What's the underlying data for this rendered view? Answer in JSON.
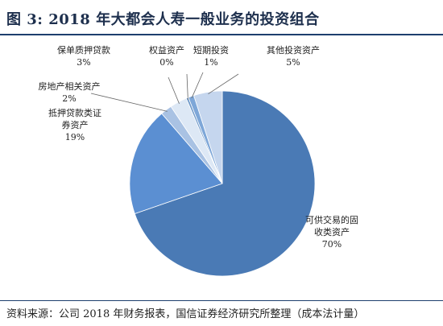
{
  "title": "图 3:  2018 年大都会人寿一般业务的投资组合",
  "source": "资料来源：公司 2018 年财务报表，国信证券经济研究所整理（成本法计量）",
  "colors": {
    "rule": "#1d3f6e",
    "slices": [
      "#4a7ab5",
      "#5b8fd2",
      "#a9c2e3",
      "#dde8f5",
      "#6f99c9",
      "#7ea7d8",
      "#c5d6ee"
    ]
  },
  "chart_data": {
    "type": "pie",
    "title": "2018 年大都会人寿一般业务的投资组合",
    "slices": [
      {
        "name": "可供交易的固收类资产",
        "lines": [
          "可供交易的固",
          "收类资产"
        ],
        "value": 70,
        "label": "70%"
      },
      {
        "name": "抵押贷款类证券资产",
        "lines": [
          "抵押贷款类证",
          "券资产"
        ],
        "value": 19,
        "label": "19%"
      },
      {
        "name": "房地产相关资产",
        "lines": [
          "房地产相关资产"
        ],
        "value": 2,
        "label": "2%"
      },
      {
        "name": "保单质押贷款",
        "lines": [
          "保单质押贷款"
        ],
        "value": 3,
        "label": "3%"
      },
      {
        "name": "权益资产",
        "lines": [
          "权益资产"
        ],
        "value": 0,
        "label": "0%"
      },
      {
        "name": "短期投资",
        "lines": [
          "短期投资"
        ],
        "value": 1,
        "label": "1%"
      },
      {
        "name": "其他投资资产",
        "lines": [
          "其他投资资产"
        ],
        "value": 5,
        "label": "5%"
      }
    ]
  }
}
